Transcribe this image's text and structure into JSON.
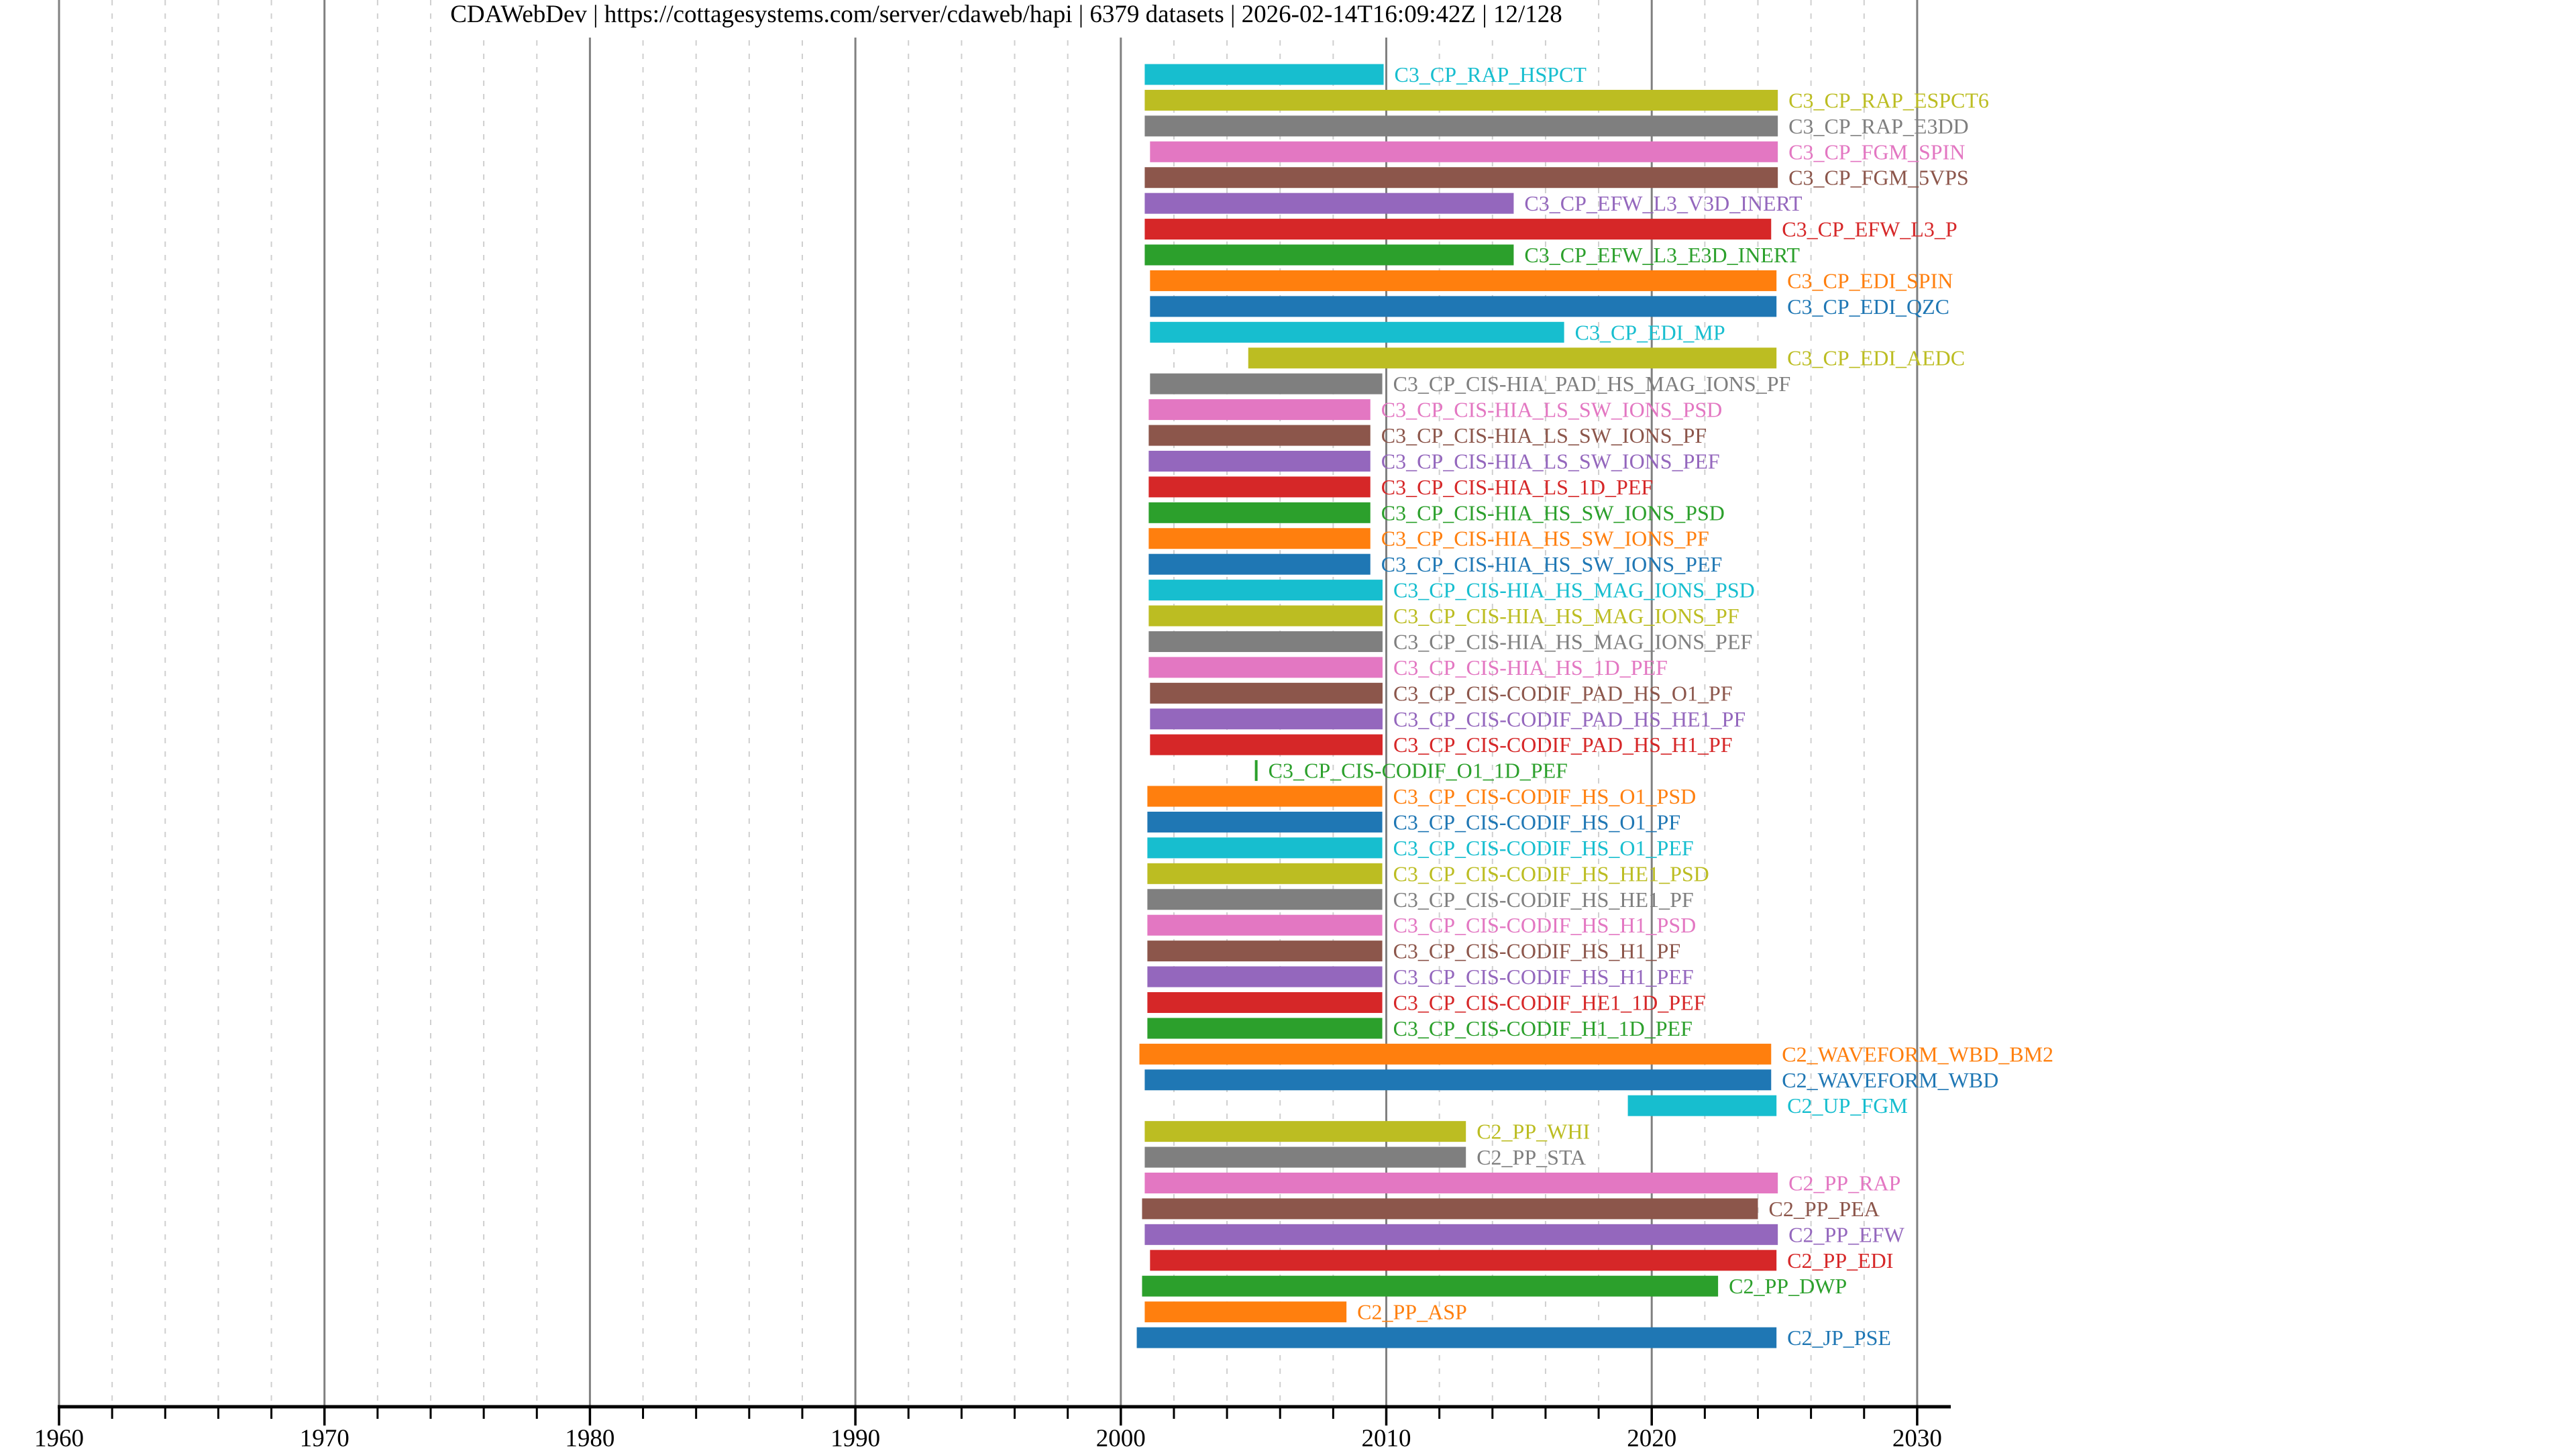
{
  "title": "CDAWebDev | https://cottagesystems.com/server/cdaweb/hapi | 6379 datasets | 2026-02-14T16:09:42Z | 12/128",
  "chart_data": {
    "type": "bar",
    "orientation": "horizontal",
    "title": "CDAWebDev | https://cottagesystems.com/server/cdaweb/hapi | 6379 datasets | 2026-02-14T16:09:42Z | 12/128",
    "xlabel": "",
    "ylabel": "",
    "xlim": [
      1960,
      2030
    ],
    "xticks": [
      "1960",
      "1970",
      "1980",
      "1990",
      "2000",
      "2010",
      "2020",
      "2030"
    ],
    "grid": "vertical major solid, minor dotted every 2 years",
    "legend": "none (labels beside bars)",
    "series": [
      {
        "name": "C3_CP_RAP_HSPCT",
        "start": 2000.9,
        "end": 2009.9,
        "color": "#17becf"
      },
      {
        "name": "C3_CP_RAP_ESPCT6",
        "start": 2000.9,
        "end": 2024.75,
        "color": "#bcbd22"
      },
      {
        "name": "C3_CP_RAP_E3DD",
        "start": 2000.9,
        "end": 2024.75,
        "color": "#7f7f7f"
      },
      {
        "name": "C3_CP_FGM_SPIN",
        "start": 2001.1,
        "end": 2024.75,
        "color": "#e377c2"
      },
      {
        "name": "C3_CP_FGM_5VPS",
        "start": 2000.9,
        "end": 2024.75,
        "color": "#8c564b"
      },
      {
        "name": "C3_CP_EFW_L3_V3D_INERT",
        "start": 2000.9,
        "end": 2014.8,
        "color": "#9467bd"
      },
      {
        "name": "C3_CP_EFW_L3_P",
        "start": 2000.9,
        "end": 2024.5,
        "color": "#d62728"
      },
      {
        "name": "C3_CP_EFW_L3_E3D_INERT",
        "start": 2000.9,
        "end": 2014.8,
        "color": "#2ca02c"
      },
      {
        "name": "C3_CP_EDI_SPIN",
        "start": 2001.1,
        "end": 2024.7,
        "color": "#ff7f0e"
      },
      {
        "name": "C3_CP_EDI_QZC",
        "start": 2001.1,
        "end": 2024.7,
        "color": "#1f77b4"
      },
      {
        "name": "C3_CP_EDI_MP",
        "start": 2001.1,
        "end": 2016.7,
        "color": "#17becf"
      },
      {
        "name": "C3_CP_EDI_AEDC",
        "start": 2004.8,
        "end": 2024.7,
        "color": "#bcbd22"
      },
      {
        "name": "C3_CP_CIS-HIA_PAD_HS_MAG_IONS_PF",
        "start": 2001.1,
        "end": 2009.85,
        "color": "#7f7f7f"
      },
      {
        "name": "C3_CP_CIS-HIA_LS_SW_IONS_PSD",
        "start": 2001.05,
        "end": 2009.4,
        "color": "#e377c2"
      },
      {
        "name": "C3_CP_CIS-HIA_LS_SW_IONS_PF",
        "start": 2001.05,
        "end": 2009.4,
        "color": "#8c564b"
      },
      {
        "name": "C3_CP_CIS-HIA_LS_SW_IONS_PEF",
        "start": 2001.05,
        "end": 2009.4,
        "color": "#9467bd"
      },
      {
        "name": "C3_CP_CIS-HIA_LS_1D_PEF",
        "start": 2001.05,
        "end": 2009.4,
        "color": "#d62728"
      },
      {
        "name": "C3_CP_CIS-HIA_HS_SW_IONS_PSD",
        "start": 2001.05,
        "end": 2009.4,
        "color": "#2ca02c"
      },
      {
        "name": "C3_CP_CIS-HIA_HS_SW_IONS_PF",
        "start": 2001.05,
        "end": 2009.4,
        "color": "#ff7f0e"
      },
      {
        "name": "C3_CP_CIS-HIA_HS_SW_IONS_PEF",
        "start": 2001.05,
        "end": 2009.4,
        "color": "#1f77b4"
      },
      {
        "name": "C3_CP_CIS-HIA_HS_MAG_IONS_PSD",
        "start": 2001.05,
        "end": 2009.86,
        "color": "#17becf"
      },
      {
        "name": "C3_CP_CIS-HIA_HS_MAG_IONS_PF",
        "start": 2001.05,
        "end": 2009.86,
        "color": "#bcbd22"
      },
      {
        "name": "C3_CP_CIS-HIA_HS_MAG_IONS_PEF",
        "start": 2001.05,
        "end": 2009.86,
        "color": "#7f7f7f"
      },
      {
        "name": "C3_CP_CIS-HIA_HS_1D_PEF",
        "start": 2001.05,
        "end": 2009.86,
        "color": "#e377c2"
      },
      {
        "name": "C3_CP_CIS-CODIF_PAD_HS_O1_PF",
        "start": 2001.1,
        "end": 2009.86,
        "color": "#8c564b"
      },
      {
        "name": "C3_CP_CIS-CODIF_PAD_HS_HE1_PF",
        "start": 2001.1,
        "end": 2009.86,
        "color": "#9467bd"
      },
      {
        "name": "C3_CP_CIS-CODIF_PAD_HS_H1_PF",
        "start": 2001.1,
        "end": 2009.86,
        "color": "#d62728"
      },
      {
        "name": "C3_CP_CIS-CODIF_O1_1D_PEF",
        "start": 2005.05,
        "end": 2005.1,
        "color": "#2ca02c"
      },
      {
        "name": "C3_CP_CIS-CODIF_HS_O1_PSD",
        "start": 2001.0,
        "end": 2009.85,
        "color": "#ff7f0e"
      },
      {
        "name": "C3_CP_CIS-CODIF_HS_O1_PF",
        "start": 2001.0,
        "end": 2009.85,
        "color": "#1f77b4"
      },
      {
        "name": "C3_CP_CIS-CODIF_HS_O1_PEF",
        "start": 2001.0,
        "end": 2009.85,
        "color": "#17becf"
      },
      {
        "name": "C3_CP_CIS-CODIF_HS_HE1_PSD",
        "start": 2001.0,
        "end": 2009.85,
        "color": "#bcbd22"
      },
      {
        "name": "C3_CP_CIS-CODIF_HS_HE1_PF",
        "start": 2001.0,
        "end": 2009.85,
        "color": "#7f7f7f"
      },
      {
        "name": "C3_CP_CIS-CODIF_HS_H1_PSD",
        "start": 2001.0,
        "end": 2009.85,
        "color": "#e377c2"
      },
      {
        "name": "C3_CP_CIS-CODIF_HS_H1_PF",
        "start": 2001.0,
        "end": 2009.85,
        "color": "#8c564b"
      },
      {
        "name": "C3_CP_CIS-CODIF_HS_H1_PEF",
        "start": 2001.0,
        "end": 2009.85,
        "color": "#9467bd"
      },
      {
        "name": "C3_CP_CIS-CODIF_HE1_1D_PEF",
        "start": 2001.0,
        "end": 2009.85,
        "color": "#d62728"
      },
      {
        "name": "C3_CP_CIS-CODIF_H1_1D_PEF",
        "start": 2001.0,
        "end": 2009.85,
        "color": "#2ca02c"
      },
      {
        "name": "C2_WAVEFORM_WBD_BM2",
        "start": 2000.7,
        "end": 2024.5,
        "color": "#ff7f0e"
      },
      {
        "name": "C2_WAVEFORM_WBD",
        "start": 2000.9,
        "end": 2024.5,
        "color": "#1f77b4"
      },
      {
        "name": "C2_UP_FGM",
        "start": 2019.1,
        "end": 2024.7,
        "color": "#17becf"
      },
      {
        "name": "C2_PP_WHI",
        "start": 2000.9,
        "end": 2013.0,
        "color": "#bcbd22"
      },
      {
        "name": "C2_PP_STA",
        "start": 2000.9,
        "end": 2013.0,
        "color": "#7f7f7f"
      },
      {
        "name": "C2_PP_RAP",
        "start": 2000.9,
        "end": 2024.75,
        "color": "#e377c2"
      },
      {
        "name": "C2_PP_PEA",
        "start": 2000.8,
        "end": 2024.0,
        "color": "#8c564b"
      },
      {
        "name": "C2_PP_EFW",
        "start": 2000.9,
        "end": 2024.75,
        "color": "#9467bd"
      },
      {
        "name": "C2_PP_EDI",
        "start": 2001.1,
        "end": 2024.7,
        "color": "#d62728"
      },
      {
        "name": "C2_PP_DWP",
        "start": 2000.8,
        "end": 2022.5,
        "color": "#2ca02c"
      },
      {
        "name": "C2_PP_ASP",
        "start": 2000.9,
        "end": 2008.5,
        "color": "#ff7f0e"
      },
      {
        "name": "C2_JP_PSE",
        "start": 2000.6,
        "end": 2024.7,
        "color": "#1f77b4"
      }
    ]
  }
}
